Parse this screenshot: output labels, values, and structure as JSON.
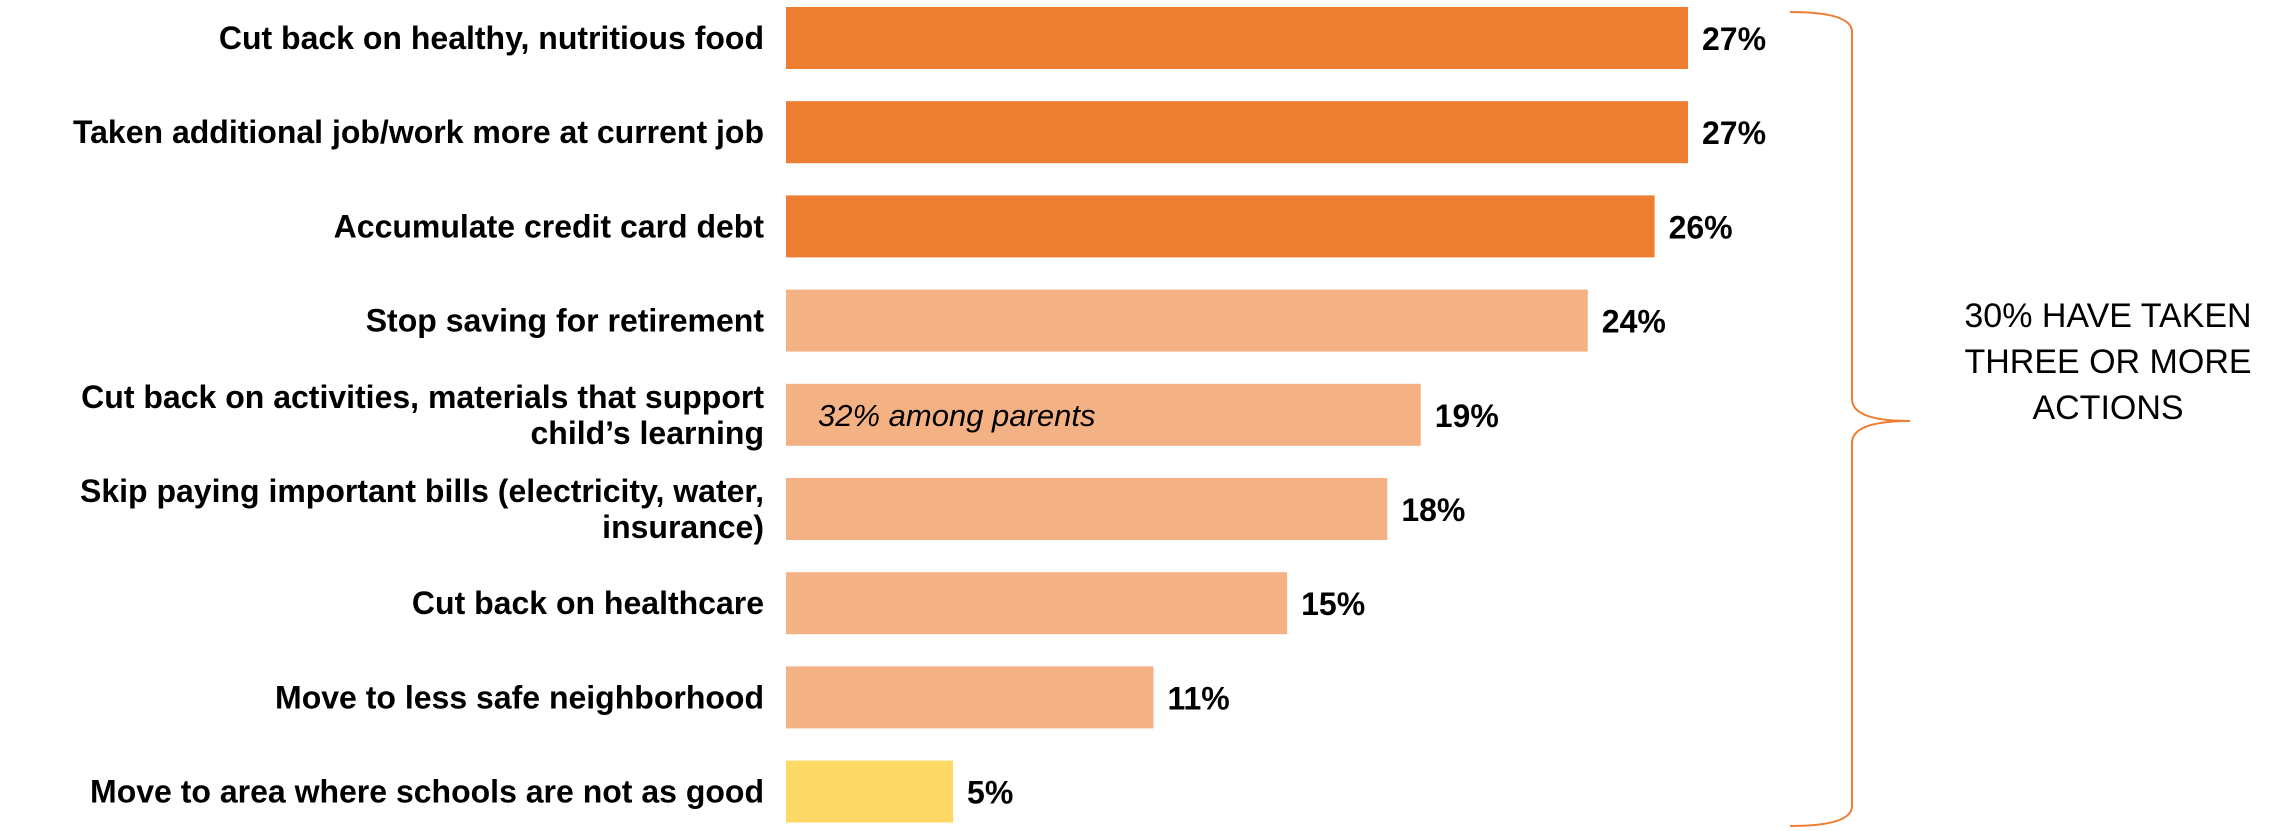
{
  "chart_data": {
    "type": "bar",
    "orientation": "horizontal",
    "title": "",
    "xlabel": "",
    "ylabel": "",
    "xlim": [
      0,
      27
    ],
    "grid": false,
    "legend": "none",
    "categories": [
      [
        "Cut back on healthy, nutritious food"
      ],
      [
        "Taken additional job/work more at current job"
      ],
      [
        "Accumulate credit card debt"
      ],
      [
        "Stop saving for retirement"
      ],
      [
        "Cut back on activities, materials that support",
        "child’s learning"
      ],
      [
        "Skip paying important bills (electricity, water,",
        "insurance)"
      ],
      [
        "Cut back on healthcare"
      ],
      [
        "Move to less safe neighborhood"
      ],
      [
        "Move to area where schools are not as good"
      ]
    ],
    "values": [
      27,
      27,
      26,
      24,
      19,
      18,
      15,
      11,
      5
    ],
    "value_labels": [
      "27%",
      "27%",
      "26%",
      "24%",
      "19%",
      "18%",
      "15%",
      "11%",
      "5%"
    ],
    "bar_colors": [
      "#ED7D31",
      "#ED7D31",
      "#ED7D31",
      "#F4B183",
      "#F4B183",
      "#F4B183",
      "#F4B183",
      "#F4B183",
      "#FFD966"
    ],
    "annotations": [
      {
        "category_index": 4,
        "text": "32% among parents"
      }
    ],
    "bracket": {
      "color": "#ED7D31",
      "lines": [
        "30% HAVE TAKEN",
        "THREE OR MORE",
        "ACTIONS"
      ]
    }
  }
}
